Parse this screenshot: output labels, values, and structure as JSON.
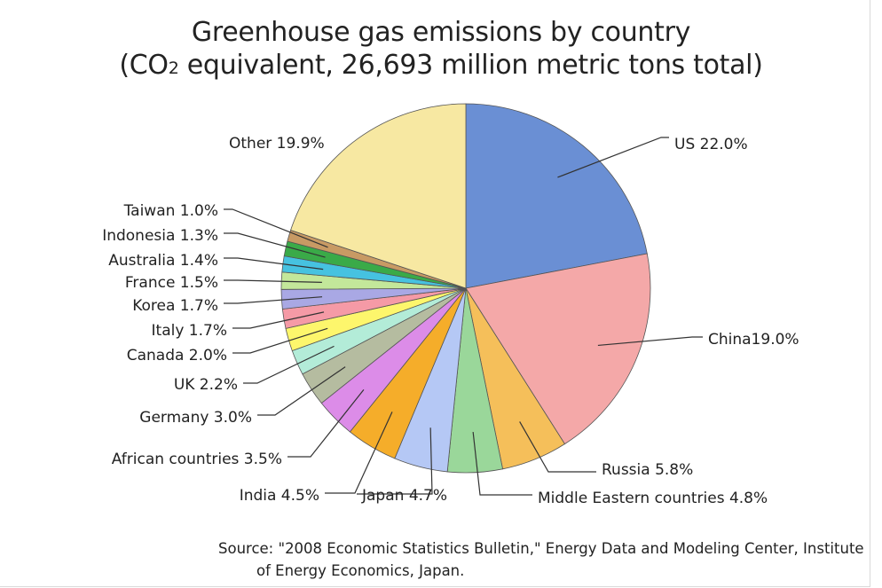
{
  "title_line1": "Greenhouse gas emissions by country",
  "title_line2": {
    "before": "(CO",
    "subscript": "2",
    "after": " equivalent, 26,693 million metric tons total)"
  },
  "source": "Source: \"2008 Economic Statistics Bulletin,\" Energy Data and Modeling Center, Institute of Energy Economics, Japan.",
  "chart_data": {
    "type": "pie",
    "title": "Greenhouse gas emissions by country (CO2 equivalent, 26,693 million metric tons total)",
    "unit": "%",
    "slices": [
      {
        "label": "US 22.0%",
        "name": "US",
        "value": 22.0,
        "color": "#6a8fd4"
      },
      {
        "label": "China19.0%",
        "name": "China",
        "value": 19.0,
        "color": "#f4a8a8"
      },
      {
        "label": "Russia 5.8%",
        "name": "Russia",
        "value": 5.8,
        "color": "#f5bf5a"
      },
      {
        "label": "Middle Eastern countries 4.8%",
        "name": "Middle Eastern countries",
        "value": 4.8,
        "color": "#9ad79a"
      },
      {
        "label": "Japan 4.7%",
        "name": "Japan",
        "value": 4.7,
        "color": "#b5c8f5"
      },
      {
        "label": "India 4.5%",
        "name": "India",
        "value": 4.5,
        "color": "#f5ad2a"
      },
      {
        "label": "African countries 3.5%",
        "name": "African countries",
        "value": 3.5,
        "color": "#dc8ce8"
      },
      {
        "label": "Germany 3.0%",
        "name": "Germany",
        "value": 3.0,
        "color": "#b5bca0"
      },
      {
        "label": "UK  2.2%",
        "name": "UK",
        "value": 2.2,
        "color": "#b3ecd8"
      },
      {
        "label": "Canada 2.0%",
        "name": "Canada",
        "value": 2.0,
        "color": "#fdf66c"
      },
      {
        "label": "Italy 1.7%",
        "name": "Italy",
        "value": 1.7,
        "color": "#f59aa6"
      },
      {
        "label": "Korea 1.7%",
        "name": "Korea",
        "value": 1.7,
        "color": "#a9a8e4"
      },
      {
        "label": "France 1.5%",
        "name": "France",
        "value": 1.5,
        "color": "#c3e79a"
      },
      {
        "label": "Australia 1.4%",
        "name": "Australia",
        "value": 1.4,
        "color": "#46c2e0"
      },
      {
        "label": "Indonesia 1.3%",
        "name": "Indonesia",
        "value": 1.3,
        "color": "#3aaa48"
      },
      {
        "label": "Taiwan 1.0%",
        "name": "Taiwan",
        "value": 1.0,
        "color": "#c89a64"
      },
      {
        "label": "Other 19.9%",
        "name": "Other",
        "value": 19.9,
        "color": "#f7e8a2"
      }
    ]
  }
}
